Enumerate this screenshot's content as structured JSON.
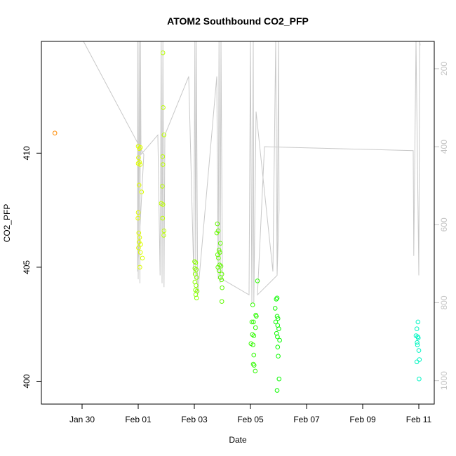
{
  "chart_data": {
    "type": "scatter",
    "title": "ATOM2 Southbound CO2_PFP",
    "xlabel": "Date",
    "ylabel": "CO2_PFP",
    "x_ticks": [
      "Jan 30",
      "Feb 01",
      "Feb 03",
      "Feb 05",
      "Feb 07",
      "Feb 09",
      "Feb 11"
    ],
    "x_tick_days": [
      0,
      2,
      4,
      6,
      8,
      10,
      12
    ],
    "xlim_days": [
      -1.45,
      12.55
    ],
    "y_ticks": [
      400,
      405,
      410
    ],
    "ylim": [
      399.0,
      414.9
    ],
    "y2_ticks": [
      200,
      400,
      600,
      800,
      1000
    ],
    "y2lim": [
      1060,
      130
    ],
    "y2_scale": "reversed",
    "grid": false,
    "points_note": "x = fractional days after Jan 30, y = CO2_PFP",
    "points": [
      {
        "x": -0.97,
        "y": 410.88,
        "c": "#ff8a00"
      },
      {
        "x": 2.0,
        "y": 410.3
      },
      {
        "x": 2.04,
        "y": 410.2
      },
      {
        "x": 2.08,
        "y": 410.25
      },
      {
        "x": 2.01,
        "y": 409.8
      },
      {
        "x": 2.05,
        "y": 409.6
      },
      {
        "x": 2.0,
        "y": 409.55
      },
      {
        "x": 2.07,
        "y": 409.5
      },
      {
        "x": 2.03,
        "y": 408.6
      },
      {
        "x": 2.12,
        "y": 408.3
      },
      {
        "x": 2.0,
        "y": 407.4
      },
      {
        "x": 1.99,
        "y": 407.15
      },
      {
        "x": 2.02,
        "y": 406.5
      },
      {
        "x": 2.05,
        "y": 406.3
      },
      {
        "x": 2.03,
        "y": 406.1
      },
      {
        "x": 2.09,
        "y": 406.0
      },
      {
        "x": 2.01,
        "y": 405.85
      },
      {
        "x": 2.08,
        "y": 405.65
      },
      {
        "x": 2.15,
        "y": 405.4
      },
      {
        "x": 2.06,
        "y": 405.0
      },
      {
        "x": 2.88,
        "y": 414.4
      },
      {
        "x": 2.89,
        "y": 412.0
      },
      {
        "x": 2.92,
        "y": 410.8
      },
      {
        "x": 2.87,
        "y": 409.85
      },
      {
        "x": 2.88,
        "y": 409.5
      },
      {
        "x": 2.86,
        "y": 408.55
      },
      {
        "x": 2.82,
        "y": 407.8
      },
      {
        "x": 2.88,
        "y": 407.75
      },
      {
        "x": 2.87,
        "y": 407.15
      },
      {
        "x": 2.92,
        "y": 406.6
      },
      {
        "x": 2.91,
        "y": 406.4
      },
      {
        "x": 4.01,
        "y": 405.25
      },
      {
        "x": 4.05,
        "y": 405.2
      },
      {
        "x": 4.02,
        "y": 404.95
      },
      {
        "x": 4.07,
        "y": 404.9
      },
      {
        "x": 4.03,
        "y": 404.7
      },
      {
        "x": 4.08,
        "y": 404.55
      },
      {
        "x": 4.02,
        "y": 404.35
      },
      {
        "x": 4.06,
        "y": 404.2
      },
      {
        "x": 4.04,
        "y": 404.0
      },
      {
        "x": 4.1,
        "y": 403.95
      },
      {
        "x": 4.05,
        "y": 403.8
      },
      {
        "x": 4.08,
        "y": 403.65
      },
      {
        "x": 4.82,
        "y": 406.9
      },
      {
        "x": 4.85,
        "y": 406.6
      },
      {
        "x": 4.8,
        "y": 406.5
      },
      {
        "x": 4.93,
        "y": 406.05
      },
      {
        "x": 4.88,
        "y": 405.75
      },
      {
        "x": 4.91,
        "y": 405.65
      },
      {
        "x": 4.83,
        "y": 405.55
      },
      {
        "x": 4.86,
        "y": 405.4
      },
      {
        "x": 4.9,
        "y": 405.1
      },
      {
        "x": 4.95,
        "y": 405.05
      },
      {
        "x": 4.84,
        "y": 405.0
      },
      {
        "x": 4.88,
        "y": 404.85
      },
      {
        "x": 4.98,
        "y": 404.7
      },
      {
        "x": 4.93,
        "y": 404.55
      },
      {
        "x": 4.97,
        "y": 404.45
      },
      {
        "x": 4.99,
        "y": 404.1
      },
      {
        "x": 4.98,
        "y": 403.5
      },
      {
        "x": 6.25,
        "y": 404.4
      },
      {
        "x": 6.08,
        "y": 403.35
      },
      {
        "x": 6.19,
        "y": 402.9
      },
      {
        "x": 6.21,
        "y": 402.85
      },
      {
        "x": 6.11,
        "y": 402.6
      },
      {
        "x": 6.05,
        "y": 402.6
      },
      {
        "x": 6.18,
        "y": 402.35
      },
      {
        "x": 6.07,
        "y": 402.05
      },
      {
        "x": 6.12,
        "y": 402.0
      },
      {
        "x": 6.09,
        "y": 401.6
      },
      {
        "x": 6.02,
        "y": 401.65
      },
      {
        "x": 6.12,
        "y": 401.15
      },
      {
        "x": 6.1,
        "y": 400.75
      },
      {
        "x": 6.13,
        "y": 400.7
      },
      {
        "x": 6.17,
        "y": 400.45
      },
      {
        "x": 6.92,
        "y": 403.6
      },
      {
        "x": 6.95,
        "y": 403.65
      },
      {
        "x": 6.88,
        "y": 403.2
      },
      {
        "x": 6.95,
        "y": 402.85
      },
      {
        "x": 6.98,
        "y": 402.75
      },
      {
        "x": 6.9,
        "y": 402.6
      },
      {
        "x": 6.97,
        "y": 402.45
      },
      {
        "x": 7.01,
        "y": 402.3
      },
      {
        "x": 6.93,
        "y": 402.1
      },
      {
        "x": 6.96,
        "y": 401.95
      },
      {
        "x": 7.04,
        "y": 401.8
      },
      {
        "x": 6.97,
        "y": 401.5
      },
      {
        "x": 6.99,
        "y": 401.1
      },
      {
        "x": 7.02,
        "y": 400.1
      },
      {
        "x": 6.95,
        "y": 399.6
      },
      {
        "x": 11.97,
        "y": 402.6
      },
      {
        "x": 11.93,
        "y": 402.3
      },
      {
        "x": 11.9,
        "y": 402.0
      },
      {
        "x": 11.96,
        "y": 401.95
      },
      {
        "x": 11.98,
        "y": 401.9
      },
      {
        "x": 11.94,
        "y": 401.7
      },
      {
        "x": 11.95,
        "y": 401.6
      },
      {
        "x": 12.0,
        "y": 401.35
      },
      {
        "x": 12.02,
        "y": 400.95
      },
      {
        "x": 11.93,
        "y": 400.85
      },
      {
        "x": 12.01,
        "y": 400.1
      }
    ],
    "altitude_trace_note": "grey line = flight altitude on right reversed axis; x = days after Jan 30, y = altitude value",
    "altitude_trace": [
      [
        0.05,
        130
      ],
      [
        2.2,
        420
      ],
      [
        1.98,
        720
      ],
      [
        1.98,
        130
      ],
      [
        2.0,
        740
      ],
      [
        2.03,
        130
      ],
      [
        2.06,
        750
      ],
      [
        2.08,
        130
      ],
      [
        2.1,
        420
      ],
      [
        2.7,
        370
      ],
      [
        2.78,
        730
      ],
      [
        2.82,
        130
      ],
      [
        2.85,
        750
      ],
      [
        2.88,
        130
      ],
      [
        2.92,
        760
      ],
      [
        2.95,
        370
      ],
      [
        3.8,
        220
      ],
      [
        3.98,
        730
      ],
      [
        4.02,
        130
      ],
      [
        4.05,
        740
      ],
      [
        4.07,
        130
      ],
      [
        4.12,
        780
      ],
      [
        4.8,
        220
      ],
      [
        4.85,
        740
      ],
      [
        4.88,
        130
      ],
      [
        4.92,
        750
      ],
      [
        4.95,
        130
      ],
      [
        5.0,
        740
      ],
      [
        5.95,
        780
      ],
      [
        6.0,
        130
      ],
      [
        6.05,
        800
      ],
      [
        6.1,
        130
      ],
      [
        6.12,
        800
      ],
      [
        6.2,
        310
      ],
      [
        6.8,
        720
      ],
      [
        6.9,
        130
      ],
      [
        6.95,
        730
      ],
      [
        7.0,
        130
      ],
      [
        7.02,
        560
      ],
      [
        6.95,
        730
      ],
      [
        6.25,
        780
      ],
      [
        6.5,
        400
      ],
      [
        11.8,
        410
      ],
      [
        11.82,
        680
      ],
      [
        11.9,
        130
      ],
      [
        12.0,
        730
      ],
      [
        12.03,
        130
      ],
      [
        12.05,
        140
      ]
    ]
  }
}
